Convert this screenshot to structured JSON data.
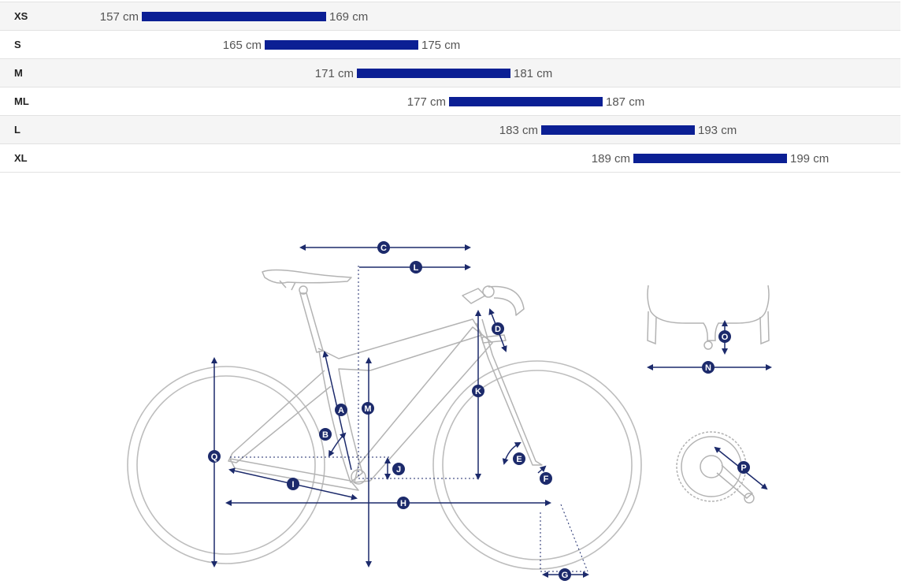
{
  "size_chart": [
    {
      "size": "XS",
      "min": "157 cm",
      "max": "169 cm",
      "min_cm": 157,
      "max_cm": 169
    },
    {
      "size": "S",
      "min": "165 cm",
      "max": "175 cm",
      "min_cm": 165,
      "max_cm": 175
    },
    {
      "size": "M",
      "min": "171 cm",
      "max": "181 cm",
      "min_cm": 171,
      "max_cm": 181
    },
    {
      "size": "ML",
      "min": "177 cm",
      "max": "187 cm",
      "min_cm": 177,
      "max_cm": 187
    },
    {
      "size": "L",
      "min": "183 cm",
      "max": "193 cm",
      "min_cm": 183,
      "max_cm": 193
    },
    {
      "size": "XL",
      "min": "189 cm",
      "max": "199 cm",
      "min_cm": 189,
      "max_cm": 199
    }
  ],
  "colors": {
    "bar": "#0b1f94",
    "marker": "#1c2a6b",
    "line": "#b8b8b8"
  },
  "geometry_markers": {
    "A": "A",
    "B": "B",
    "C": "C",
    "D": "D",
    "E": "E",
    "F": "F",
    "G": "G",
    "H": "H",
    "I": "I",
    "J": "J",
    "K": "K",
    "L": "L",
    "M": "M",
    "N": "N",
    "O": "O",
    "P": "P",
    "Q": "Q"
  }
}
